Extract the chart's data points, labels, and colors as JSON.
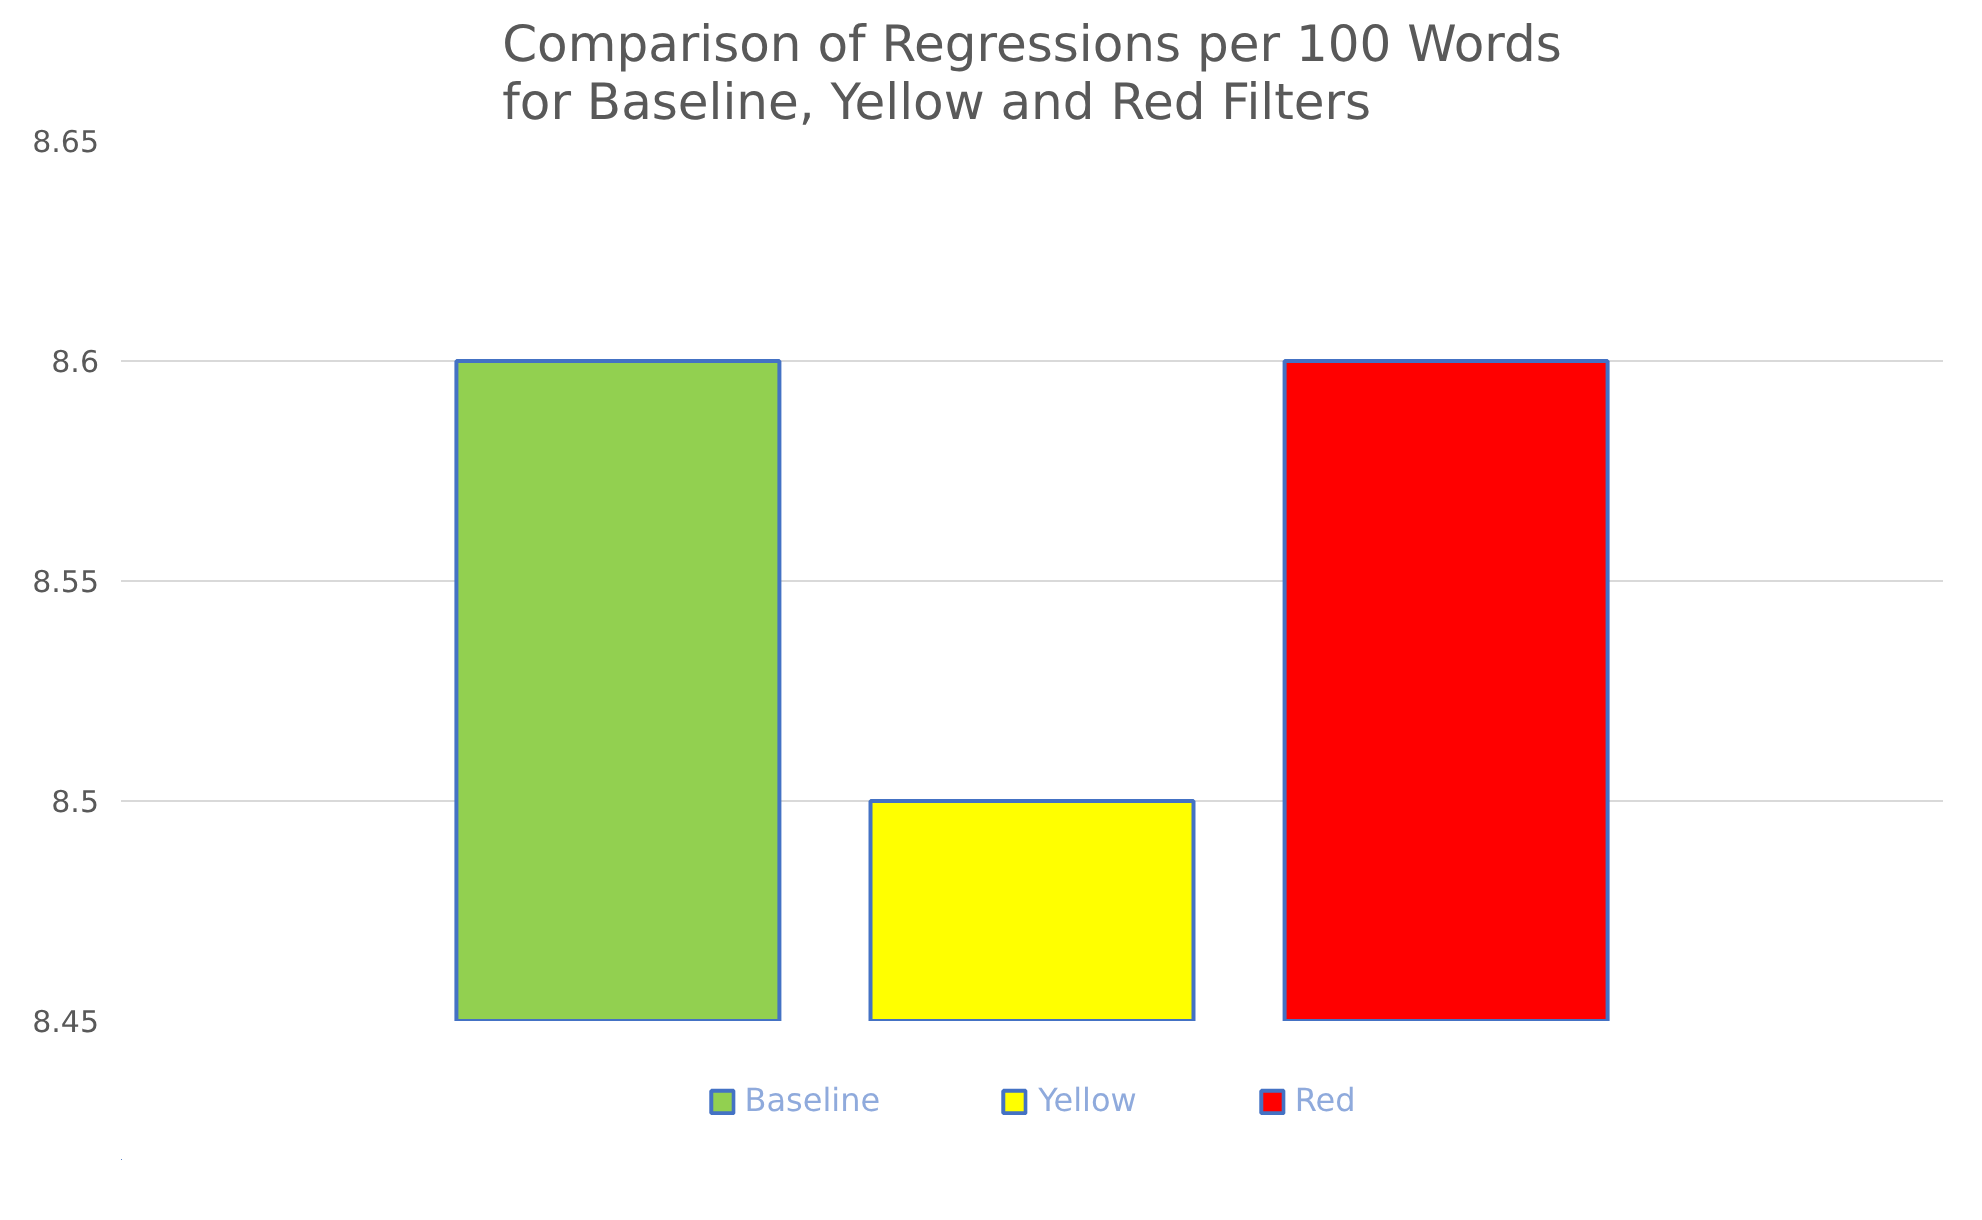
{
  "chart_data": {
    "type": "bar",
    "title": "Comparison of Regressions per 100 Words\nfor Baseline, Yellow and Red Filters",
    "categories": [
      null
    ],
    "series": [
      {
        "name": "Baseline",
        "color": "#92d050",
        "values": [
          8.6
        ]
      },
      {
        "name": "Yellow",
        "color": "#ffff00",
        "values": [
          8.5
        ]
      },
      {
        "name": "Red",
        "color": "#ff0000",
        "values": [
          8.6
        ]
      }
    ],
    "ylim": [
      8.45,
      8.65
    ],
    "yticks": [
      8.45,
      8.5,
      8.55,
      8.6,
      8.65
    ],
    "grid": "y",
    "legend": "bottom",
    "tick_labels": "y"
  }
}
